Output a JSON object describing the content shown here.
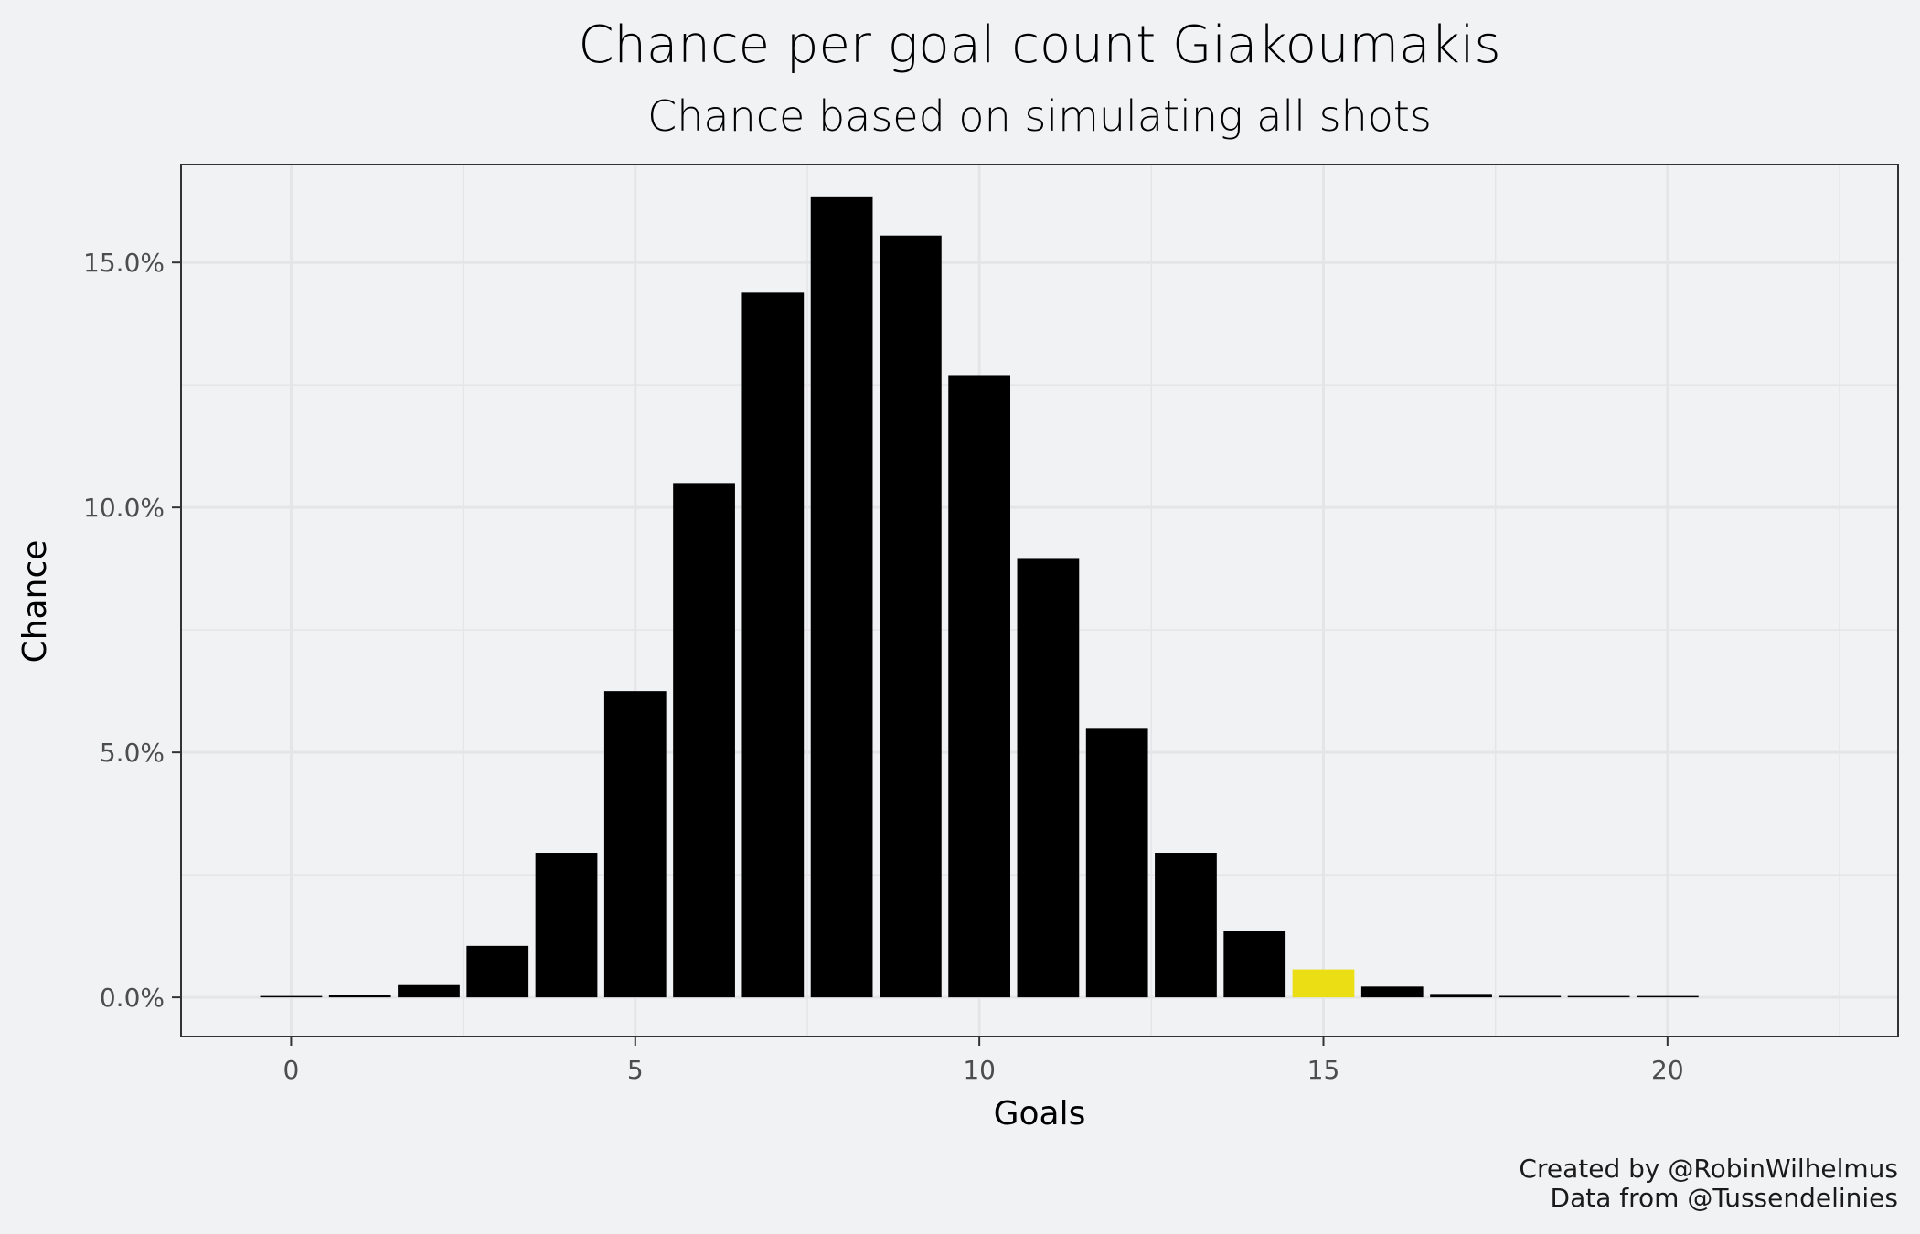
{
  "chart_data": {
    "type": "bar",
    "title": "Chance per goal count Giakoumakis",
    "subtitle": "Chance based on simulating all shots",
    "xlabel": "Goals",
    "ylabel": "Chance",
    "x": [
      0,
      1,
      2,
      3,
      4,
      5,
      6,
      7,
      8,
      9,
      10,
      11,
      12,
      13,
      14,
      15,
      16,
      17,
      18,
      19,
      20
    ],
    "values": [
      0.02,
      0.05,
      0.25,
      1.05,
      2.95,
      6.25,
      10.5,
      14.4,
      16.35,
      15.55,
      12.7,
      8.95,
      5.5,
      2.95,
      1.35,
      0.57,
      0.22,
      0.07,
      0.03,
      0.01,
      0.005
    ],
    "highlight_x": 15,
    "colors": {
      "bar": "#000000",
      "highlight": "#ebde14",
      "background": "#f1f2f4",
      "grid": "#e4e5e7"
    },
    "x_ticks": [
      0,
      5,
      10,
      15,
      20
    ],
    "x_tick_labels": [
      "0",
      "5",
      "10",
      "15",
      "20"
    ],
    "y_ticks": [
      0,
      5,
      10,
      15
    ],
    "y_tick_labels": [
      "0.0%",
      "5.0%",
      "10.0%",
      "15.0%"
    ],
    "xlim": [
      -1.6,
      23.35
    ],
    "ylim": [
      -0.8,
      17.0
    ],
    "grid": true,
    "legend": "none"
  },
  "caption": {
    "line1": "Created by @RobinWilhelmus",
    "line2": "Data from @Tussendelinies"
  }
}
